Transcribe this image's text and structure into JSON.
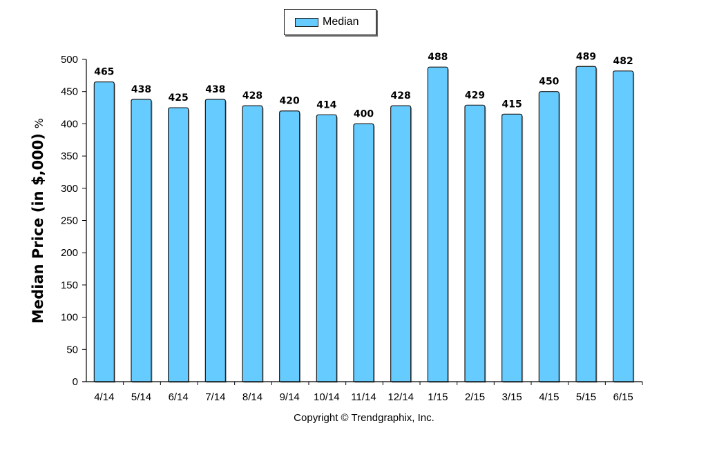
{
  "chart_data": {
    "type": "bar",
    "categories": [
      "4/14",
      "5/14",
      "6/14",
      "7/14",
      "8/14",
      "9/14",
      "10/14",
      "11/14",
      "12/14",
      "1/15",
      "2/15",
      "3/15",
      "4/15",
      "5/15",
      "6/15"
    ],
    "series": [
      {
        "name": "Median",
        "values": [
          465,
          438,
          425,
          438,
          428,
          420,
          414,
          400,
          428,
          488,
          429,
          415,
          450,
          489,
          482
        ]
      }
    ],
    "data_labels": [
      "465",
      "438",
      "425",
      "438",
      "428",
      "420",
      "414",
      "400",
      "428",
      "488",
      "429",
      "415",
      "450",
      "489",
      "482"
    ],
    "ylabel": "Median Price (in $,000)",
    "ylabel_unit": "%",
    "xlabel": "",
    "title": "",
    "ylim": [
      0,
      500
    ],
    "yticks": [
      0,
      50,
      100,
      150,
      200,
      250,
      300,
      350,
      400,
      450,
      500
    ],
    "legend_position": "top-center",
    "grid": false,
    "bar_color": "#66ccff",
    "edge_color": "#1a1a1a"
  },
  "legend": {
    "label": "Median"
  },
  "footer": {
    "copyright": "Copyright © Trendgraphix, Inc."
  }
}
